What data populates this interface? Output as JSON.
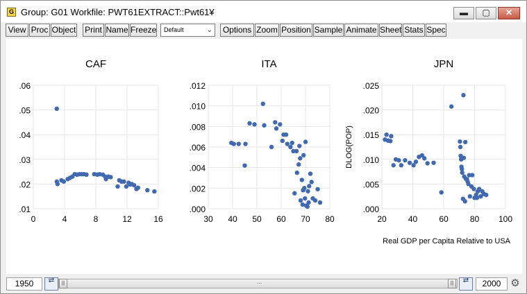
{
  "window": {
    "title": "Group: G01   Workfile: PWT61EXTRACT::Pwt61¥",
    "app_icon_letter": "G"
  },
  "toolbar": {
    "view": "View",
    "proc": "Proc",
    "object": "Object",
    "print": "Print",
    "name": "Name",
    "freeze": "Freeze",
    "dropdown_value": "Default",
    "options": "Options",
    "zoom": "Zoom",
    "position": "Position",
    "sample": "Sample",
    "animate": "Animate",
    "sheet": "Sheet",
    "stats": "Stats",
    "spec": "Spec"
  },
  "statusbar": {
    "start_year": "1950",
    "end_year": "2000"
  },
  "colors": {
    "marker": "#4069b0",
    "gridline": "#e6e6e6",
    "axis_text": "#000000"
  },
  "chart_data": [
    {
      "type": "scatter",
      "title": "CAF",
      "xlim": [
        0,
        16
      ],
      "ylim": [
        0.01,
        0.06
      ],
      "x_ticks": [
        "0",
        "4",
        "8",
        "12",
        "16"
      ],
      "y_ticks": [
        ".01",
        ".02",
        ".03",
        ".04",
        ".05",
        ".06"
      ],
      "grid": true,
      "points": [
        [
          3.0,
          0.0505
        ],
        [
          3.0,
          0.021
        ],
        [
          3.1,
          0.02
        ],
        [
          3.6,
          0.0215
        ],
        [
          3.9,
          0.021
        ],
        [
          4.4,
          0.022
        ],
        [
          4.7,
          0.0225
        ],
        [
          5.0,
          0.023
        ],
        [
          5.3,
          0.024
        ],
        [
          5.6,
          0.0238
        ],
        [
          5.9,
          0.024
        ],
        [
          6.2,
          0.024
        ],
        [
          6.5,
          0.024
        ],
        [
          6.8,
          0.0238
        ],
        [
          7.8,
          0.024
        ],
        [
          8.2,
          0.0238
        ],
        [
          8.5,
          0.024
        ],
        [
          8.9,
          0.0238
        ],
        [
          9.2,
          0.023
        ],
        [
          9.3,
          0.022
        ],
        [
          9.6,
          0.023
        ],
        [
          9.9,
          0.0228
        ],
        [
          10.8,
          0.019
        ],
        [
          11.0,
          0.0215
        ],
        [
          11.3,
          0.021
        ],
        [
          11.6,
          0.021
        ],
        [
          11.9,
          0.019
        ],
        [
          12.2,
          0.0205
        ],
        [
          12.4,
          0.0198
        ],
        [
          12.6,
          0.02
        ],
        [
          12.9,
          0.0195
        ],
        [
          13.2,
          0.018
        ],
        [
          13.4,
          0.0185
        ],
        [
          14.6,
          0.0175
        ],
        [
          15.5,
          0.017
        ]
      ]
    },
    {
      "type": "scatter",
      "title": "ITA",
      "xlim": [
        30,
        80
      ],
      "ylim": [
        0.0,
        0.012
      ],
      "x_ticks": [
        "30",
        "40",
        "50",
        "60",
        "70",
        "80"
      ],
      "y_ticks": [
        ".000",
        ".002",
        ".004",
        ".006",
        ".008",
        ".010",
        ".012"
      ],
      "grid": true,
      "points": [
        [
          39.5,
          0.0064
        ],
        [
          40.5,
          0.0063
        ],
        [
          42.5,
          0.0063
        ],
        [
          45.0,
          0.0042
        ],
        [
          45.3,
          0.0063
        ],
        [
          47.0,
          0.0083
        ],
        [
          49.0,
          0.0082
        ],
        [
          52.5,
          0.0102
        ],
        [
          53.0,
          0.0081
        ],
        [
          56.0,
          0.006
        ],
        [
          57.5,
          0.0084
        ],
        [
          58.0,
          0.0078
        ],
        [
          59.5,
          0.0082
        ],
        [
          60.5,
          0.0066
        ],
        [
          61.0,
          0.0072
        ],
        [
          62.0,
          0.0072
        ],
        [
          62.5,
          0.0063
        ],
        [
          63.8,
          0.006
        ],
        [
          64.5,
          0.0064
        ],
        [
          65.0,
          0.0056
        ],
        [
          65.5,
          0.0015
        ],
        [
          66.3,
          0.0056
        ],
        [
          66.5,
          0.0035
        ],
        [
          67.2,
          0.0043
        ],
        [
          67.5,
          0.0061
        ],
        [
          67.8,
          0.0049
        ],
        [
          68.0,
          0.0008
        ],
        [
          68.5,
          0.0028
        ],
        [
          68.8,
          0.0004
        ],
        [
          69.0,
          0.0018
        ],
        [
          69.2,
          0.0052
        ],
        [
          69.5,
          0.002
        ],
        [
          69.8,
          0.001
        ],
        [
          70.0,
          0.0065
        ],
        [
          70.3,
          0.0003
        ],
        [
          70.8,
          0.0002
        ],
        [
          71.0,
          0.0017
        ],
        [
          71.3,
          0.0006
        ],
        [
          71.5,
          0.0022
        ],
        [
          72.0,
          0.0034
        ],
        [
          72.5,
          0.0026
        ],
        [
          73.0,
          0.001
        ],
        [
          74.0,
          0.0008
        ],
        [
          75.0,
          0.0019
        ],
        [
          76.0,
          0.0006
        ]
      ]
    },
    {
      "type": "scatter",
      "title": "JPN",
      "xlim": [
        20,
        100
      ],
      "ylim": [
        0.0,
        0.025
      ],
      "x_ticks": [
        "20",
        "40",
        "60",
        "80",
        "100"
      ],
      "y_ticks": [
        ".000",
        ".005",
        ".010",
        ".015",
        ".020",
        ".025"
      ],
      "ylabel": "DLOG(POP)",
      "xlabel": "Real GDP per Capita Relative to USA",
      "grid": true,
      "points": [
        [
          22.0,
          0.014
        ],
        [
          23.0,
          0.015
        ],
        [
          24.0,
          0.0138
        ],
        [
          25.5,
          0.0137
        ],
        [
          26.0,
          0.0147
        ],
        [
          27.5,
          0.0088
        ],
        [
          29.0,
          0.01
        ],
        [
          31.0,
          0.0098
        ],
        [
          32.5,
          0.0088
        ],
        [
          35.0,
          0.0098
        ],
        [
          38.0,
          0.0093
        ],
        [
          40.5,
          0.0088
        ],
        [
          42.0,
          0.0095
        ],
        [
          44.0,
          0.0105
        ],
        [
          46.0,
          0.0108
        ],
        [
          47.5,
          0.0102
        ],
        [
          49.5,
          0.0092
        ],
        [
          53.5,
          0.0093
        ],
        [
          58.5,
          0.0033
        ],
        [
          65.0,
          0.0207
        ],
        [
          70.5,
          0.0136
        ],
        [
          70.8,
          0.0125
        ],
        [
          71.0,
          0.0107
        ],
        [
          71.3,
          0.01
        ],
        [
          71.5,
          0.0085
        ],
        [
          71.8,
          0.008
        ],
        [
          72.0,
          0.0073
        ],
        [
          72.5,
          0.002
        ],
        [
          72.8,
          0.023
        ],
        [
          73.0,
          0.0103
        ],
        [
          73.3,
          0.0065
        ],
        [
          73.8,
          0.0015
        ],
        [
          74.0,
          0.0135
        ],
        [
          74.5,
          0.006
        ],
        [
          75.0,
          0.006
        ],
        [
          75.5,
          0.0055
        ],
        [
          76.0,
          0.005
        ],
        [
          76.5,
          0.0068
        ],
        [
          77.0,
          0.0025
        ],
        [
          78.0,
          0.0045
        ],
        [
          78.5,
          0.0068
        ],
        [
          79.5,
          0.004
        ],
        [
          80.0,
          0.0022
        ],
        [
          81.0,
          0.0028
        ],
        [
          81.5,
          0.0022
        ],
        [
          82.0,
          0.0035
        ],
        [
          83.0,
          0.004
        ],
        [
          84.0,
          0.0025
        ],
        [
          85.0,
          0.0035
        ],
        [
          86.0,
          0.003
        ],
        [
          87.5,
          0.0028
        ]
      ]
    }
  ]
}
